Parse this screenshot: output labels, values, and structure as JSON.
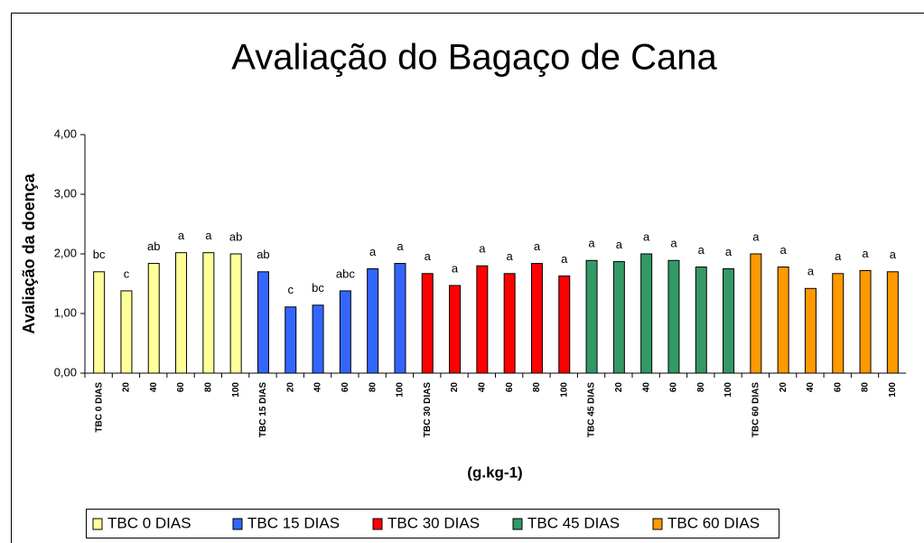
{
  "chart_data": {
    "type": "bar",
    "title": "Avaliação do Bagaço de Cana",
    "y_label": "Avaliação da doença",
    "x_label": "(g.kg-1)",
    "ylim": [
      0,
      4
    ],
    "yticks": [
      {
        "value": 0,
        "label": "0,00"
      },
      {
        "value": 1,
        "label": "1,00"
      },
      {
        "value": 2,
        "label": "2,00"
      },
      {
        "value": 3,
        "label": "3,00"
      },
      {
        "value": 4,
        "label": "4,00"
      }
    ],
    "series": [
      {
        "name": "TBC 0 DIAS",
        "color": "#ffff99",
        "categories": [
          "TBC 0 DIAS",
          "20",
          "40",
          "60",
          "80",
          "100"
        ],
        "values": [
          1.7,
          1.38,
          1.84,
          2.02,
          2.02,
          2.0
        ],
        "value_labels": [
          "bc",
          "c",
          "ab",
          "a",
          "a",
          "ab"
        ]
      },
      {
        "name": "TBC 15 DIAS",
        "color": "#3366ff",
        "categories": [
          "TBC 15 DIAS",
          "20",
          "40",
          "60",
          "80",
          "100"
        ],
        "values": [
          1.7,
          1.11,
          1.14,
          1.38,
          1.75,
          1.84
        ],
        "value_labels": [
          "ab",
          "c",
          "bc",
          "abc",
          "a",
          "a"
        ]
      },
      {
        "name": "TBC 30 DIAS",
        "color": "#ff0000",
        "categories": [
          "TBC 30 DIAS",
          "20",
          "40",
          "60",
          "80",
          "100"
        ],
        "values": [
          1.67,
          1.47,
          1.8,
          1.67,
          1.84,
          1.63
        ],
        "value_labels": [
          "a",
          "a",
          "a",
          "a",
          "a",
          "a"
        ]
      },
      {
        "name": "TBC 45 DIAS",
        "color": "#339966",
        "categories": [
          "TBC 45 DIAS",
          "20",
          "40",
          "60",
          "80",
          "100"
        ],
        "values": [
          1.89,
          1.87,
          2.0,
          1.89,
          1.78,
          1.75
        ],
        "value_labels": [
          "a",
          "a",
          "a",
          "a",
          "a",
          "a"
        ]
      },
      {
        "name": "TBC 60 DIAS",
        "color": "#ff9900",
        "categories": [
          "TBC 60 DIAS",
          "20",
          "40",
          "60",
          "80",
          "100"
        ],
        "values": [
          2.0,
          1.78,
          1.42,
          1.67,
          1.72,
          1.7
        ],
        "value_labels": [
          "a",
          "a",
          "a",
          "a",
          "a",
          "a"
        ]
      }
    ]
  }
}
